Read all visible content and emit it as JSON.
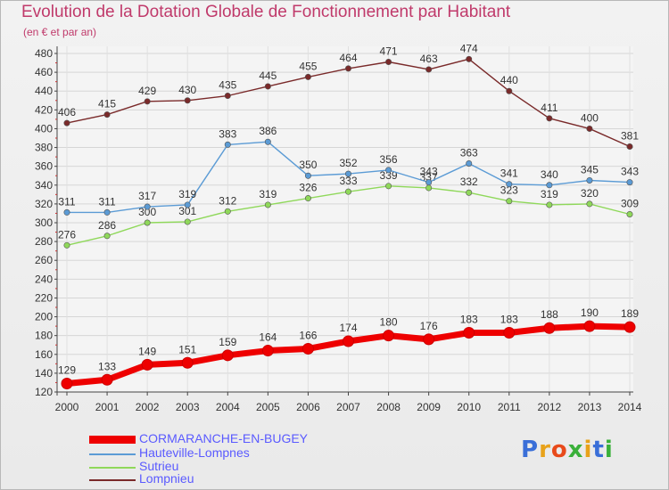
{
  "title": "Evolution de la Dotation Globale de Fonctionnement par Habitant",
  "subtitle": "(en € et par an)",
  "logo": {
    "text": "Proxiti",
    "letter_colors": [
      "#3a6fd8",
      "#e8a21a",
      "#e84a1a",
      "#3ab03a",
      "#e8a21a",
      "#3a6fd8",
      "#3ab03a"
    ]
  },
  "chart_data": {
    "type": "line",
    "title": "Evolution de la Dotation Globale de Fonctionnement par Habitant",
    "ylabel": "(en € et par an)",
    "x": [
      "2000",
      "2001",
      "2002",
      "2003",
      "2004",
      "2005",
      "2006",
      "2007",
      "2008",
      "2009",
      "2010",
      "2011",
      "2012",
      "2013",
      "2014"
    ],
    "ylim": [
      120,
      480
    ],
    "yticks": [
      120,
      140,
      160,
      180,
      200,
      220,
      240,
      260,
      280,
      300,
      320,
      340,
      360,
      380,
      400,
      420,
      440,
      460,
      480
    ],
    "grid": true,
    "legend_position": "bottom-left",
    "series": [
      {
        "name": "CORMARANCHE-EN-BUGEY",
        "color": "#ee0000",
        "values": [
          129,
          133,
          149,
          151,
          159,
          164,
          166,
          174,
          180,
          176,
          183,
          183,
          188,
          190,
          189
        ]
      },
      {
        "name": "Hauteville-Lompnes",
        "color": "#5b9bd5",
        "values": [
          311,
          311,
          317,
          319,
          383,
          386,
          350,
          352,
          356,
          343,
          363,
          341,
          340,
          345,
          343
        ]
      },
      {
        "name": "Sutrieu",
        "color": "#8fd85a",
        "values": [
          276,
          286,
          300,
          301,
          312,
          319,
          326,
          333,
          339,
          337,
          332,
          323,
          319,
          320,
          309
        ]
      },
      {
        "name": "Lompnieu",
        "color": "#7a2a2a",
        "values": [
          406,
          415,
          429,
          430,
          435,
          445,
          455,
          464,
          471,
          463,
          474,
          440,
          411,
          400,
          381
        ]
      }
    ],
    "labels": [
      [
        "129",
        "133",
        "149",
        "151",
        "159",
        "164",
        "166",
        "174",
        "180",
        "176",
        "183",
        "183",
        "188",
        "190",
        "189"
      ],
      [
        "311",
        "311",
        "317",
        "319",
        "383",
        "386",
        "350",
        "352",
        "356",
        "343",
        "363",
        "341",
        "340",
        "345",
        "343"
      ],
      [
        "276",
        "286",
        "300",
        "301",
        "312",
        "319",
        "326",
        "333",
        "339",
        "337",
        "332",
        "323",
        "319",
        "320",
        "309"
      ],
      [
        "406",
        "415",
        "429",
        "430",
        "435",
        "445",
        "455",
        "464",
        "471",
        "463",
        "474",
        "440",
        "411",
        "400",
        "381"
      ]
    ]
  }
}
